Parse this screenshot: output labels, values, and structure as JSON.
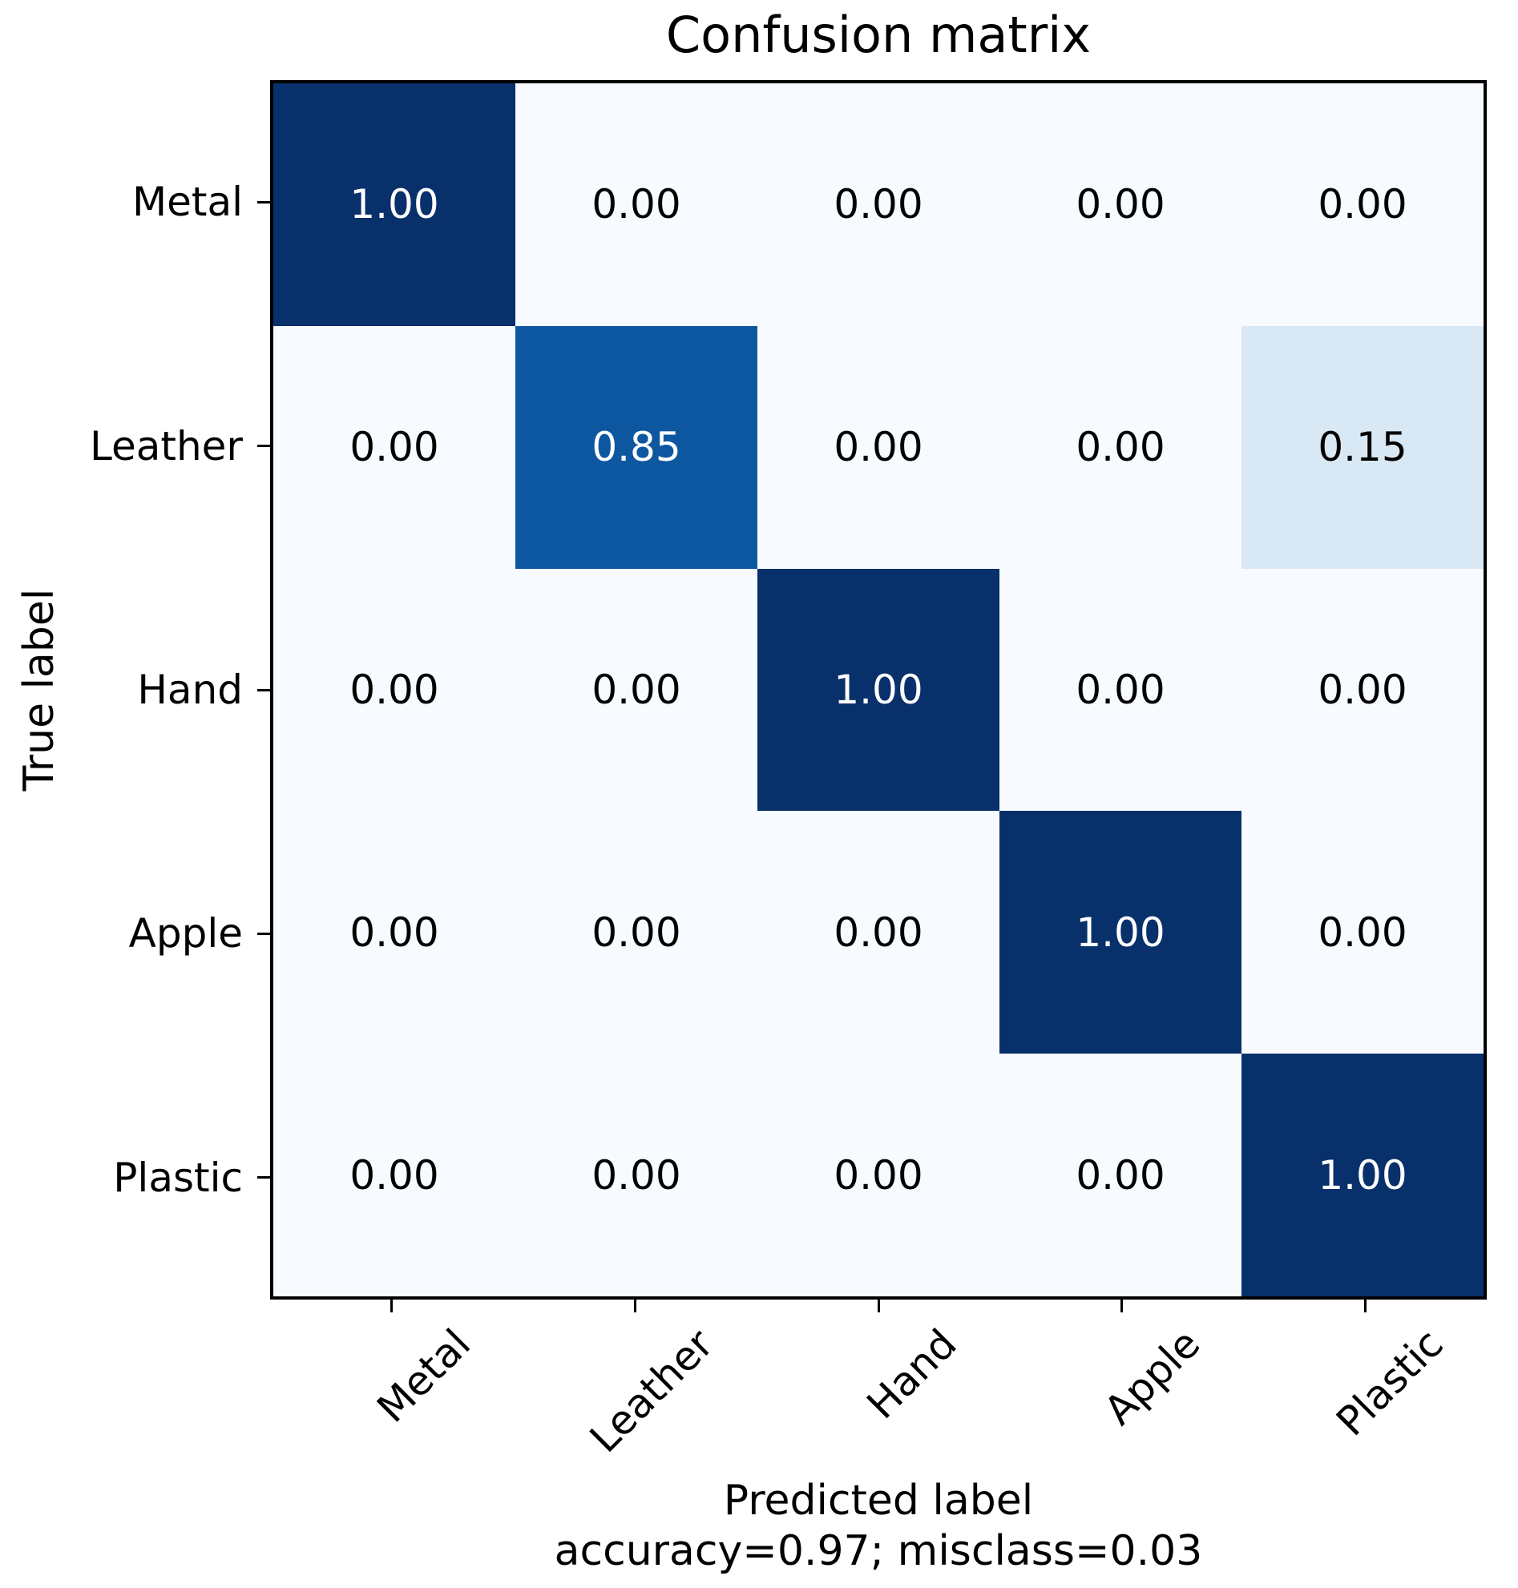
{
  "chart_data": {
    "type": "heatmap",
    "title": "Confusion matrix",
    "xlabel": "Predicted label",
    "ylabel": "True label",
    "footnote": "accuracy=0.97; misclass=0.03",
    "categories": [
      "Metal",
      "Leather",
      "Hand",
      "Apple",
      "Plastic"
    ],
    "matrix": [
      [
        1.0,
        0.0,
        0.0,
        0.0,
        0.0
      ],
      [
        0.0,
        0.85,
        0.0,
        0.0,
        0.15
      ],
      [
        0.0,
        0.0,
        1.0,
        0.0,
        0.0
      ],
      [
        0.0,
        0.0,
        0.0,
        1.0,
        0.0
      ],
      [
        0.0,
        0.0,
        0.0,
        0.0,
        1.0
      ]
    ],
    "value_decimals": 2,
    "colormap_name": "Blues",
    "colormap_anchors": [
      [
        0.0,
        "#f7fbff"
      ],
      [
        0.125,
        "#deebf7"
      ],
      [
        0.25,
        "#c6dbef"
      ],
      [
        0.375,
        "#9ecae1"
      ],
      [
        0.5,
        "#6baed6"
      ],
      [
        0.625,
        "#4292c6"
      ],
      [
        0.75,
        "#2171b5"
      ],
      [
        0.875,
        "#08519c"
      ],
      [
        1.0,
        "#08306b"
      ]
    ],
    "text_on_dark": "#ffffff",
    "text_on_light": "#000000",
    "axis_color": "#000000",
    "legend": "none",
    "grid": false
  }
}
